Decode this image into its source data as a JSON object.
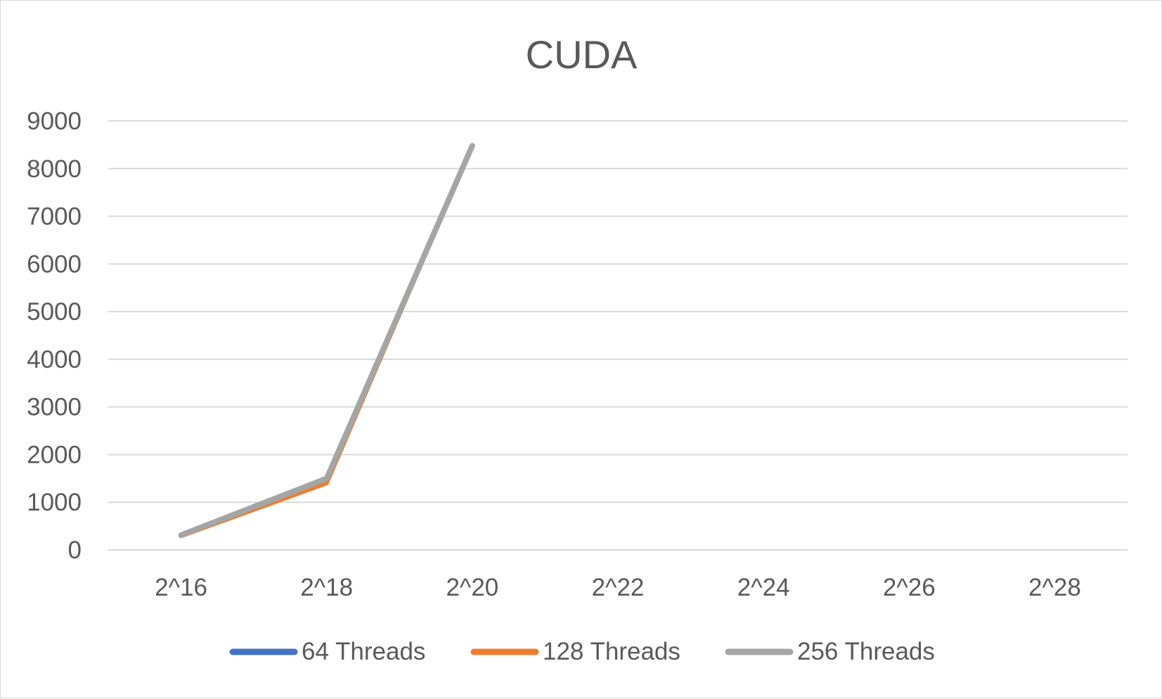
{
  "chart_data": {
    "type": "line",
    "title": "CUDA",
    "xlabel": "",
    "ylabel": "",
    "categories": [
      "2^16",
      "2^18",
      "2^20",
      "2^22",
      "2^24",
      "2^26",
      "2^28"
    ],
    "ylim": [
      0,
      9000
    ],
    "yticks": [
      0,
      1000,
      2000,
      3000,
      4000,
      5000,
      6000,
      7000,
      8000,
      9000
    ],
    "grid": true,
    "legend_position": "bottom",
    "series": [
      {
        "name": "64 Threads",
        "color": "#4472C4",
        "values": [
          300,
          1450,
          8450,
          null,
          null,
          null,
          null
        ]
      },
      {
        "name": "128 Threads",
        "color": "#ED7D31",
        "values": [
          290,
          1400,
          8480,
          null,
          null,
          null,
          null
        ]
      },
      {
        "name": "256 Threads",
        "color": "#A5A5A5",
        "values": [
          310,
          1500,
          8480,
          null,
          null,
          null,
          null
        ]
      }
    ]
  }
}
